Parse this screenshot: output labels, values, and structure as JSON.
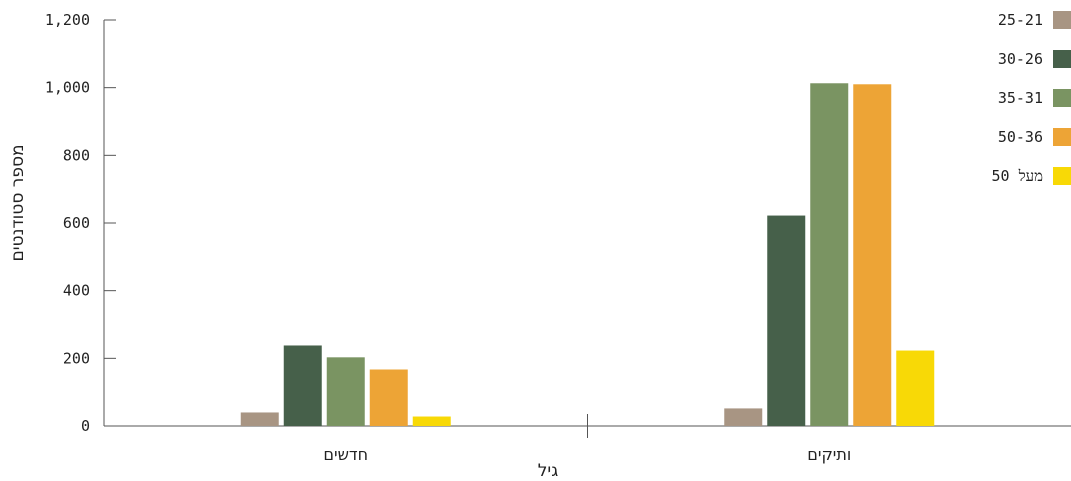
{
  "chart_data": {
    "type": "bar",
    "title": "",
    "xlabel": "גיל",
    "ylabel": "מספר סטודנטים",
    "ylim": [
      0,
      1200
    ],
    "yticks": [
      0,
      200,
      400,
      600,
      800,
      1000,
      1200
    ],
    "ytick_labels": [
      "0",
      "200",
      "400",
      "600",
      "800",
      "1,000",
      "1,200"
    ],
    "categories": [
      "חדשים",
      "ותיקים"
    ],
    "series": [
      {
        "name": "25-21",
        "color": "#a89583",
        "values": [
          40,
          52
        ]
      },
      {
        "name": "30-26",
        "color": "#46604a",
        "values": [
          238,
          622
        ]
      },
      {
        "name": "35-31",
        "color": "#7a9462",
        "values": [
          203,
          1013
        ]
      },
      {
        "name": "50-36",
        "color": "#eda436",
        "values": [
          167,
          1010
        ]
      },
      {
        "name": "מעל 50",
        "color": "#f8d906",
        "values": [
          28,
          223
        ]
      }
    ],
    "grid": false,
    "legend_position": "top-right"
  }
}
